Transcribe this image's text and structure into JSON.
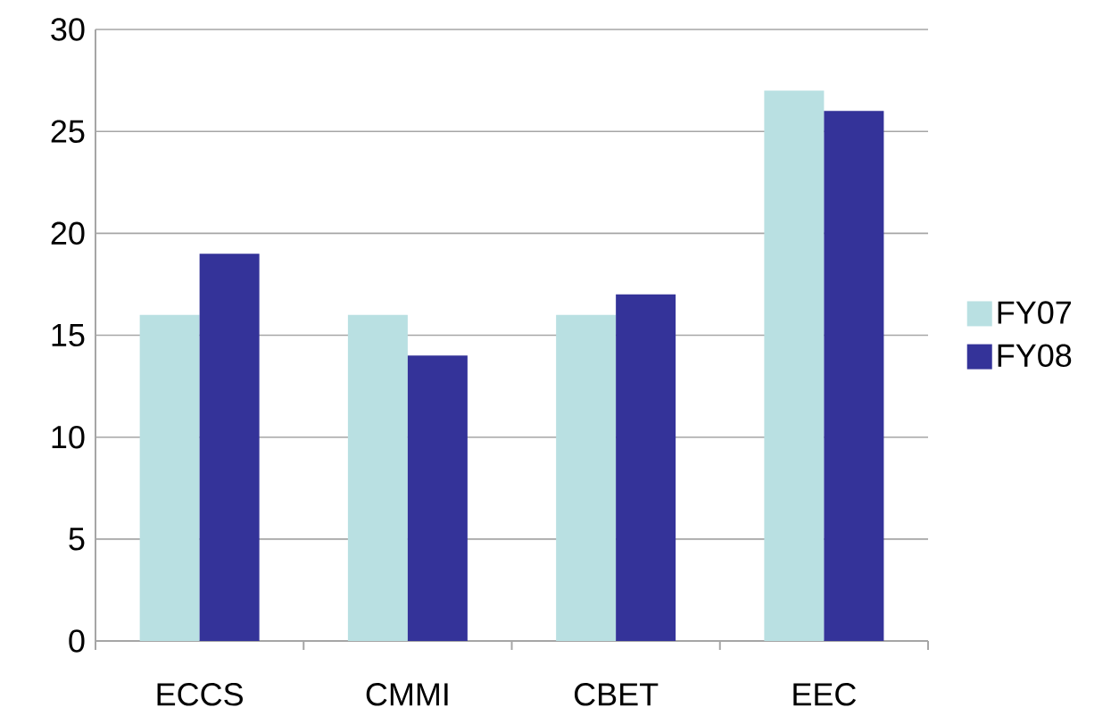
{
  "chart_data": {
    "type": "bar",
    "categories": [
      "ECCS",
      "CMMI",
      "CBET",
      "EEC"
    ],
    "series": [
      {
        "name": "FY07",
        "color": "#b9e0e2",
        "values": [
          16,
          16,
          16,
          27
        ]
      },
      {
        "name": "FY08",
        "color": "#343399",
        "values": [
          19,
          14,
          17,
          26
        ]
      }
    ],
    "ylim": [
      0,
      30
    ],
    "yticks": [
      0,
      5,
      10,
      15,
      20,
      25,
      30
    ],
    "grid": "y",
    "legend": "right"
  }
}
